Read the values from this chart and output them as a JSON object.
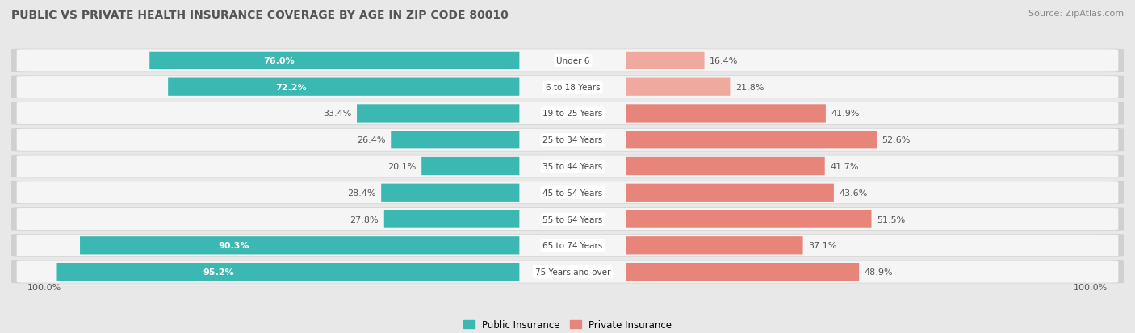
{
  "title": "PUBLIC VS PRIVATE HEALTH INSURANCE COVERAGE BY AGE IN ZIP CODE 80010",
  "source": "Source: ZipAtlas.com",
  "categories": [
    "Under 6",
    "6 to 18 Years",
    "19 to 25 Years",
    "25 to 34 Years",
    "35 to 44 Years",
    "45 to 54 Years",
    "55 to 64 Years",
    "65 to 74 Years",
    "75 Years and over"
  ],
  "public_values": [
    76.0,
    72.2,
    33.4,
    26.4,
    20.1,
    28.4,
    27.8,
    90.3,
    95.2
  ],
  "private_values": [
    16.4,
    21.8,
    41.9,
    52.6,
    41.7,
    43.6,
    51.5,
    37.1,
    48.9
  ],
  "public_color": "#3cb8b2",
  "private_color": "#e8857a",
  "private_color_light": "#f0a99f",
  "background_color": "#e8e8e8",
  "row_bg_color": "#f5f5f5",
  "row_shadow_color": "#d0d0d0",
  "label_inside_color": "#ffffff",
  "label_outside_color": "#555555",
  "title_color": "#555555",
  "source_color": "#888888",
  "legend_label_public": "Public Insurance",
  "legend_label_private": "Private Insurance",
  "x_left_label": "100.0%",
  "x_right_label": "100.0%",
  "max_scale": 100
}
